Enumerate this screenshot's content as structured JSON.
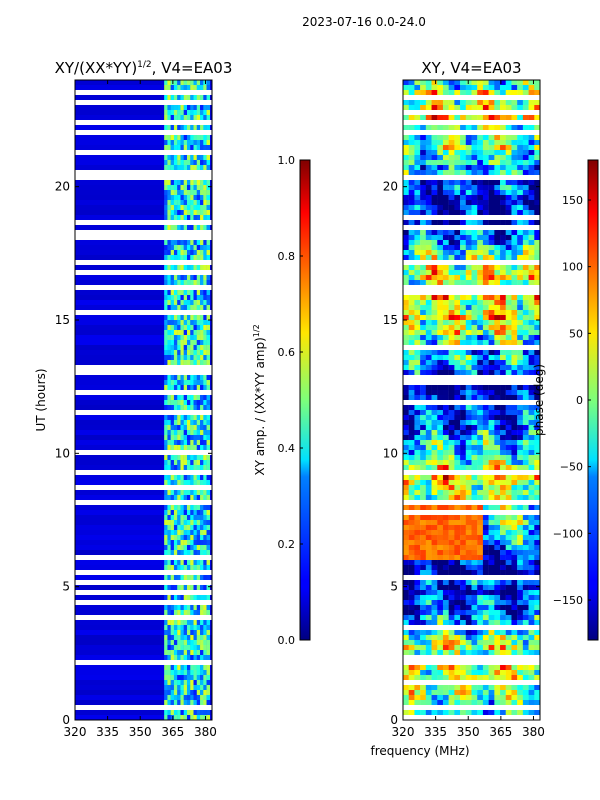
{
  "suptitle": "2023-07-16 0.0-24.0",
  "xlabel_shared": "frequency (MHz)",
  "chart_data": [
    {
      "type": "heatmap",
      "title_main": "XY/(XX*YY)",
      "title_sup": "1/2",
      "title_tail": ", V4=EA03",
      "ylabel": "UT (hours)",
      "xlim": [
        320,
        383
      ],
      "ylim": [
        0,
        24
      ],
      "xticks": [
        "320",
        "335",
        "350",
        "365",
        "380"
      ],
      "xtick_values": [
        320,
        335,
        350,
        365,
        380
      ],
      "yticks": [
        "0",
        "5",
        "10",
        "15",
        "20"
      ],
      "ytick_values": [
        0,
        5,
        10,
        15,
        20
      ],
      "colormap": "jet",
      "colorbar": {
        "label_main": "XY amp. / (XX*YY amp)",
        "label_sup": "1/2",
        "vmin": 0.0,
        "vmax": 1.0,
        "ticks": [
          "0.0",
          "0.2",
          "0.4",
          "0.6",
          "0.8",
          "1.0"
        ],
        "tick_values": [
          0.0,
          0.2,
          0.4,
          0.6,
          0.8,
          1.0
        ]
      },
      "rfi_channel_band_mhz": [
        361,
        382
      ],
      "flagged_ut_bands": [
        [
          0.35,
          0.55
        ],
        [
          2.0,
          2.3
        ],
        [
          8.05,
          8.2
        ],
        [
          16.15,
          16.35
        ],
        [
          20.2,
          20.35
        ],
        [
          22.3,
          22.45
        ],
        [
          23.0,
          23.15
        ]
      ]
    },
    {
      "type": "heatmap",
      "title": "XY, V4=EA03",
      "xlim": [
        320,
        383
      ],
      "ylim": [
        0,
        24
      ],
      "xticks": [
        "320",
        "335",
        "350",
        "365",
        "380"
      ],
      "xtick_values": [
        320,
        335,
        350,
        365,
        380
      ],
      "yticks": [
        "0",
        "5",
        "10",
        "15",
        "20"
      ],
      "ytick_values": [
        0,
        5,
        10,
        15,
        20
      ],
      "colormap": "jet",
      "colorbar": {
        "label": "phase (deg)",
        "vmin": -180,
        "vmax": 180,
        "ticks": [
          "−150",
          "−100",
          "−50",
          "0",
          "50",
          "100",
          "150"
        ],
        "tick_values": [
          -150,
          -100,
          -50,
          0,
          50,
          100,
          150
        ]
      },
      "flagged_ut_bands": [
        [
          0.35,
          0.55
        ],
        [
          2.0,
          2.3
        ],
        [
          8.05,
          8.2
        ],
        [
          16.15,
          16.35
        ],
        [
          20.2,
          20.35
        ],
        [
          22.3,
          22.45
        ],
        [
          23.0,
          23.15
        ]
      ]
    }
  ]
}
